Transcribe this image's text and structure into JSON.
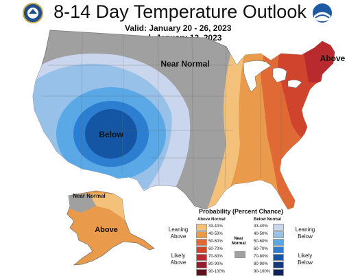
{
  "header": {
    "title": "8-14 Day Temperature Outlook",
    "valid_label": "Valid:",
    "valid_value": "January 20 - 26, 2023",
    "issued_label": "Issued:",
    "issued_value": "January 12, 2023"
  },
  "map_labels": {
    "near_normal_conus": "Near Normal",
    "below": "Below",
    "above_ne": "Above",
    "near_normal_ak": "Near Normal",
    "above_ak": "Above"
  },
  "legend": {
    "title": "Probability (Percent Chance)",
    "above_header": "Above Normal",
    "below_header": "Below Normal",
    "above_rows": [
      {
        "label": "33-40%",
        "color": "#f4c17a"
      },
      {
        "label": "40-50%",
        "color": "#e99a4b"
      },
      {
        "label": "50-60%",
        "color": "#e06a35"
      },
      {
        "label": "60-70%",
        "color": "#d0432d"
      },
      {
        "label": "70-80%",
        "color": "#b92a2f"
      },
      {
        "label": "80-90%",
        "color": "#8f1d2a"
      },
      {
        "label": "90-100%",
        "color": "#5e111c"
      }
    ],
    "below_rows": [
      {
        "label": "33-40%",
        "color": "#c9d6ee"
      },
      {
        "label": "40-50%",
        "color": "#98c1ea"
      },
      {
        "label": "50-60%",
        "color": "#5aa8e6"
      },
      {
        "label": "60-70%",
        "color": "#2c7fd0"
      },
      {
        "label": "70-80%",
        "color": "#1456a3"
      },
      {
        "label": "80-90%",
        "color": "#143a7a"
      },
      {
        "label": "90-100%",
        "color": "#10225a"
      }
    ],
    "leaning_above": "Leaning Above",
    "likely_above": "Likely Above",
    "leaning_below": "Leaning Below",
    "likely_below": "Likely Below",
    "near_normal": "Near Normal",
    "near_normal_color": "#a0a0a0"
  },
  "colors": {
    "near_normal": "#a0a0a0",
    "lake": "#ffffff"
  },
  "icons": [
    "doc-seal-icon",
    "noaa-logo-icon"
  ]
}
